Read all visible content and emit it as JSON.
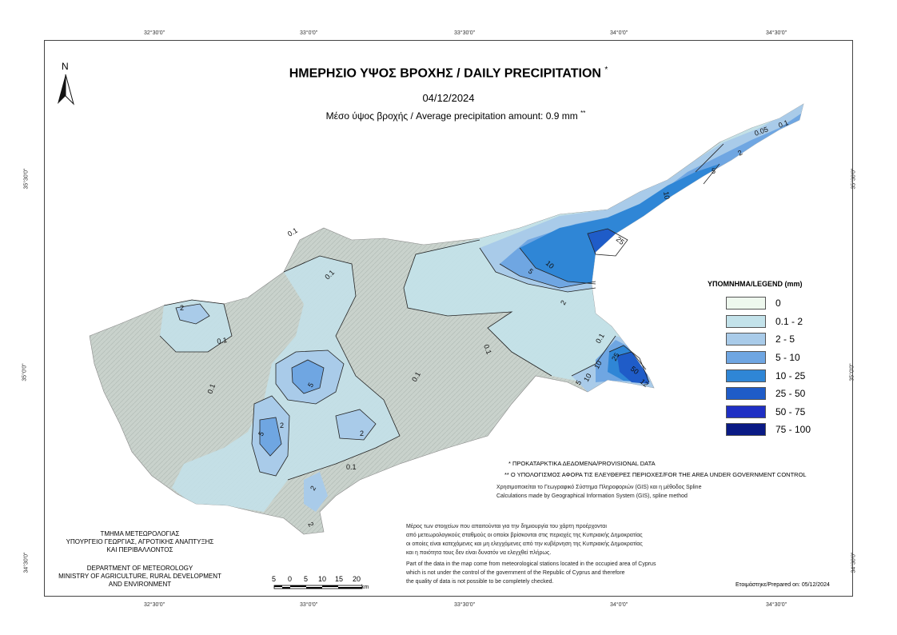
{
  "map": {
    "title": "ΗΜΕΡΗΣΙΟ ΥΨΟΣ ΒΡΟΧΗΣ / DAILY PRECIPITATION",
    "title_mark": "*",
    "date": "04/12/2024",
    "average_text": "Μέσο ύψος βροχής / Average precipitation amount: 0.9 mm",
    "average_mark": "**",
    "north_label": "N"
  },
  "coords": {
    "top": [
      "32°30'0\"",
      "33°0'0\"",
      "33°30'0\"",
      "34°0'0\"",
      "34°30'0\""
    ],
    "bottom": [
      "32°30'0\"",
      "33°0'0\"",
      "33°30'0\"",
      "34°0'0\"",
      "34°30'0\""
    ],
    "left": [
      "35°30'0\"",
      "35°0'0\"",
      "34°30'0\""
    ],
    "right": [
      "35°30'0\"",
      "35°0'0\"",
      "34°30'0\""
    ]
  },
  "legend": {
    "title": "ΥΠΟΜΝΗΜΑ/LEGEND (mm)",
    "items": [
      {
        "label": "0",
        "color": "#eef8ee"
      },
      {
        "label": "0.1 - 2",
        "color": "#c3e2ea"
      },
      {
        "label": "2 - 5",
        "color": "#a9cbe9"
      },
      {
        "label": "5 - 10",
        "color": "#6fa6e2"
      },
      {
        "label": "10 - 25",
        "color": "#2f86d6"
      },
      {
        "label": "25 - 50",
        "color": "#1f5cc8"
      },
      {
        "label": "50 - 75",
        "color": "#1f2fc4"
      },
      {
        "label": "75 - 100",
        "color": "#0a1a85"
      }
    ]
  },
  "contour_labels": [
    "0.1",
    "0.1",
    "0.1",
    "0.1",
    "0.1",
    "0.1",
    "0.1",
    "0.1",
    "2",
    "2",
    "2",
    "2",
    "2",
    "2",
    "5",
    "5",
    "5",
    "5",
    "10",
    "10",
    "10",
    "25",
    "25",
    "50",
    "0.05",
    "0.1",
    "2",
    "5",
    "10",
    "12"
  ],
  "notes": {
    "provisional": "* ΠΡΟΚΑΤΑΡΚΤΙΚΑ ΔΕΔΟΜΕΝΑ/PROVISIONAL DATA",
    "area": "** Ο ΥΠΟΛΟΓΙΣΜΟΣ ΑΦΟΡΑ ΤΙΣ ΕΛΕΥΘΕΡΕΣ ΠΕΡΙΟΧΕΣ/FOR THE AREA UNDER GOVERNMENT CONTROL",
    "gis_gr": "Χρησιμοποιείται το Γεωγραφικό Σύστημα Πληροφοριών (GIS) και η μέθοδος Spline",
    "gis_en": "Calculations made by Geographical Information System (GIS), spline method",
    "disclaimer_gr_1": "Μέρος των στοιχείων που απαιτούνται για την δημιουργία του χάρτη προέρχονται",
    "disclaimer_gr_2": "από μετεωρολογικούς σταθμούς οι οποίοι βρίσκονται στις περιοχές της Κυπριακής Δημοκρατίας",
    "disclaimer_gr_3": "οι οποίες είναι κατεχόμενες και μη ελεγχόμενες από την κυβέρνηση της Κυπριακής Δημοκρατίας",
    "disclaimer_gr_4": "και η ποιότητα τους δεν είναι δυνατόν να ελεγχθεί πλήρως.",
    "disclaimer_en_1": "Part of the data in the map come from meteorological stations located in the occupied area of Cyprus",
    "disclaimer_en_2": "which is not under the control of the government of the Republic of Cyprus and therefore",
    "disclaimer_en_3": "the quality of data is not possible to be completely checked."
  },
  "department": {
    "gr_1": "ΤΜΗΜΑ ΜΕΤΕΩΡΟΛΟΓΙΑΣ",
    "gr_2": "ΥΠΟΥΡΓΕΙΟ ΓΕΩΡΓΙΑΣ, ΑΓΡΟΤΙΚΗΣ ΑΝΑΠΤΥΞΗΣ",
    "gr_3": "ΚΑΙ ΠΕΡΙΒΑΛΛΟΝΤΟΣ",
    "en_1": "DEPARTMENT OF METEOROLOGY",
    "en_2": "MINISTRY OF AGRICULTURE, RURAL DEVELOPMENT",
    "en_3": "AND ENVIRONMENT"
  },
  "scale": {
    "ticks": [
      "5",
      "0",
      "5",
      "10",
      "15",
      "20"
    ],
    "unit": "km"
  },
  "prepared": "Ετοιμάστηκε/Prepared on: 05/12/2024"
}
